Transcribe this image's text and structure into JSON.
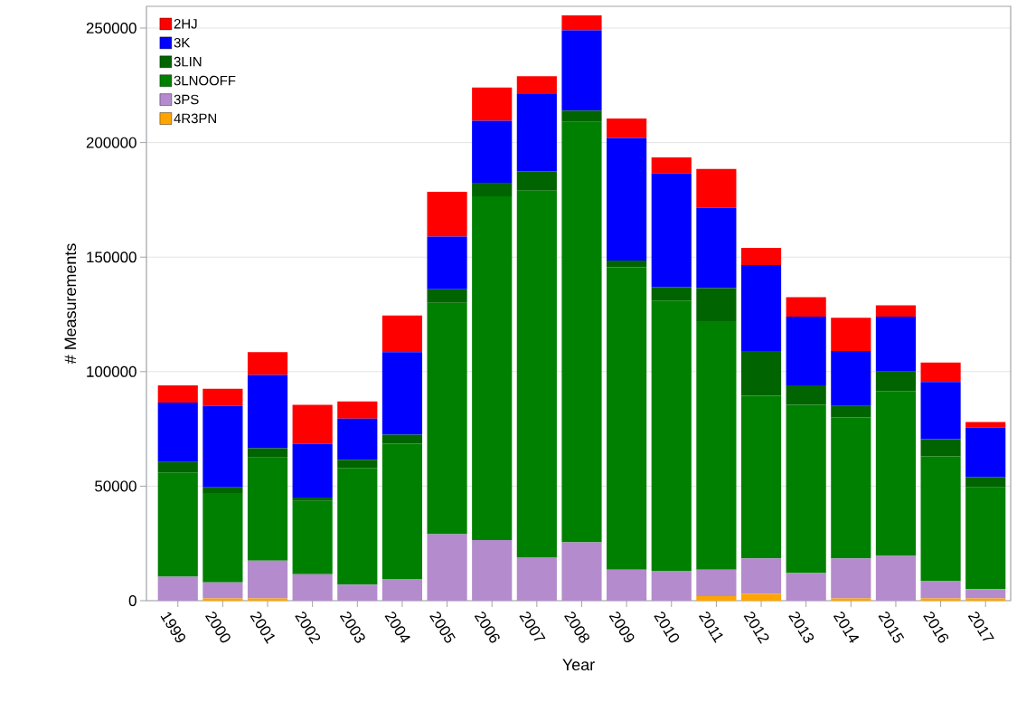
{
  "chart_data": {
    "type": "bar",
    "stacked": true,
    "xlabel": "Year",
    "ylabel": "# Measurements",
    "categories": [
      "1999",
      "2000",
      "2001",
      "2002",
      "2003",
      "2004",
      "2005",
      "2006",
      "2007",
      "2008",
      "2009",
      "2010",
      "2011",
      "2012",
      "2013",
      "2014",
      "2015",
      "2016",
      "2017"
    ],
    "series": [
      {
        "name": "4R3PN",
        "color": "#ffa500",
        "values": [
          0,
          1000,
          1000,
          0,
          0,
          0,
          0,
          0,
          0,
          0,
          0,
          0,
          2000,
          3000,
          0,
          1000,
          0,
          1000,
          1000
        ]
      },
      {
        "name": "3PS",
        "color": "#b48bcc",
        "values": [
          10500,
          7000,
          16500,
          11500,
          7000,
          9500,
          29000,
          26500,
          19000,
          25500,
          13500,
          13000,
          11500,
          15500,
          12000,
          17500,
          19500,
          7500,
          4000
        ]
      },
      {
        "name": "3LNOOFF",
        "color": "#008000",
        "values": [
          45500,
          39000,
          45000,
          32000,
          51000,
          59000,
          101000,
          150000,
          160000,
          183500,
          132000,
          118000,
          108500,
          71000,
          73500,
          61500,
          72000,
          54500,
          44500
        ]
      },
      {
        "name": "3LIN",
        "color": "#006400",
        "values": [
          4500,
          2500,
          4000,
          1500,
          3500,
          4000,
          6000,
          6000,
          8500,
          5000,
          3000,
          6000,
          14500,
          19500,
          8500,
          5000,
          8500,
          7500,
          4500
        ]
      },
      {
        "name": "3K",
        "color": "#0000ff",
        "values": [
          26000,
          35500,
          32000,
          23500,
          18000,
          36000,
          23000,
          27000,
          34000,
          35000,
          53500,
          49500,
          35000,
          37500,
          30000,
          24000,
          24000,
          25000,
          21500
        ]
      },
      {
        "name": "2HJ",
        "color": "#ff0000",
        "values": [
          7500,
          7500,
          10000,
          17000,
          7500,
          16000,
          19500,
          14500,
          7500,
          6500,
          8500,
          7000,
          17000,
          7500,
          8500,
          14500,
          5000,
          8500,
          2500
        ]
      }
    ],
    "ylim": [
      0,
      259500
    ],
    "yticks": [
      0,
      50000,
      100000,
      150000,
      200000,
      250000
    ],
    "grid": "y",
    "legend": "top left"
  }
}
